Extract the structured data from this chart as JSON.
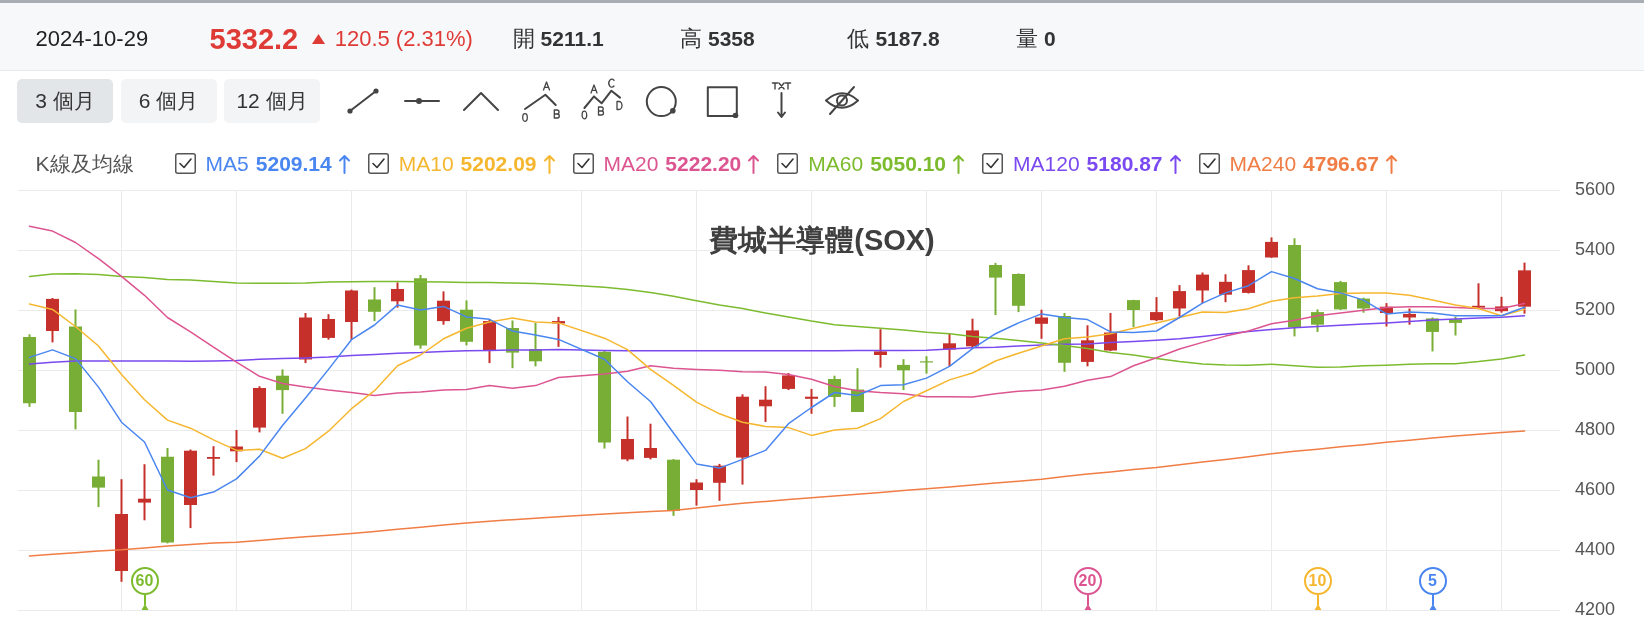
{
  "chart_data": {
    "type": "candlestick",
    "title": "費城半導體(SOX)",
    "legend_title": "K線及均線",
    "legend": "top left",
    "categories": [
      null,
      null,
      null,
      null,
      null,
      null,
      null,
      null,
      null,
      null,
      null,
      null,
      null,
      null,
      null,
      null,
      null,
      null,
      null,
      null,
      null,
      null,
      null,
      null,
      null,
      null,
      null,
      null,
      null,
      null,
      null,
      null,
      null,
      null,
      null,
      null,
      null,
      null,
      null,
      null,
      null,
      null,
      null,
      null,
      null,
      null,
      null,
      null,
      null,
      null,
      null,
      null,
      null,
      null,
      null,
      null,
      null,
      null,
      null,
      null,
      null,
      null,
      null,
      null,
      null,
      null
    ],
    "ohlc": [
      [
        5110,
        5119,
        4877,
        4889
      ],
      [
        5130,
        5240,
        5092,
        5237
      ],
      [
        5145,
        5202,
        4802,
        4860
      ],
      [
        4645,
        4701,
        4543,
        4608
      ],
      [
        4330,
        4636,
        4294,
        4520
      ],
      [
        4558,
        4686,
        4499,
        4571
      ],
      [
        4711,
        4740,
        4422,
        4425
      ],
      [
        4550,
        4735,
        4473,
        4731
      ],
      [
        4704,
        4746,
        4648,
        4710
      ],
      [
        4729,
        4800,
        4693,
        4745
      ],
      [
        4808,
        4946,
        4792,
        4940
      ],
      [
        4981,
        5002,
        4854,
        4933
      ],
      [
        5035,
        5190,
        5023,
        5175
      ],
      [
        5107,
        5186,
        5101,
        5170
      ],
      [
        5160,
        5268,
        5101,
        5265
      ],
      [
        5235,
        5276,
        5163,
        5194
      ],
      [
        5229,
        5292,
        5208,
        5270
      ],
      [
        5306,
        5317,
        5071,
        5082
      ],
      [
        5163,
        5262,
        5151,
        5231
      ],
      [
        5201,
        5232,
        5082,
        5094
      ],
      [
        5065,
        5169,
        5023,
        5163
      ],
      [
        5140,
        5165,
        5006,
        5058
      ],
      [
        5070,
        5157,
        5012,
        5029
      ],
      [
        5155,
        5177,
        5077,
        5163
      ],
      null,
      [
        5061,
        5064,
        4738,
        4758
      ],
      [
        4702,
        4845,
        4696,
        4770
      ],
      [
        4707,
        4821,
        4702,
        4740
      ],
      [
        4701,
        4703,
        4514,
        4530
      ],
      [
        4600,
        4636,
        4548,
        4625
      ],
      [
        4624,
        4687,
        4564,
        4681
      ],
      [
        4708,
        4919,
        4618,
        4911
      ],
      [
        4879,
        4946,
        4827,
        4901
      ],
      [
        4937,
        4990,
        4933,
        4982
      ],
      [
        4904,
        4937,
        4854,
        4911
      ],
      [
        4970,
        4981,
        4877,
        4910
      ],
      [
        4935,
        5006,
        4860,
        4860
      ],
      [
        5050,
        5136,
        5008,
        5062
      ],
      [
        5017,
        5036,
        4933,
        4999
      ],
      [
        5029,
        5046,
        4988,
        5025
      ],
      [
        5068,
        5121,
        5012,
        5089
      ],
      [
        5079,
        5171,
        5074,
        5132
      ],
      [
        5350,
        5357,
        5183,
        5308
      ],
      [
        5320,
        5322,
        5193,
        5214
      ],
      [
        5154,
        5201,
        5104,
        5175
      ],
      [
        5180,
        5190,
        4994,
        5024
      ],
      [
        5027,
        5149,
        5012,
        5099
      ],
      [
        5065,
        5190,
        5063,
        5125
      ],
      [
        5233,
        5234,
        5143,
        5200
      ],
      [
        5166,
        5243,
        5163,
        5193
      ],
      [
        5205,
        5283,
        5178,
        5263
      ],
      [
        5265,
        5325,
        5223,
        5318
      ],
      [
        5251,
        5319,
        5226,
        5294
      ],
      [
        5257,
        5349,
        5255,
        5333
      ],
      [
        5375,
        5442,
        5374,
        5427
      ],
      [
        5417,
        5439,
        5112,
        5142
      ],
      [
        5193,
        5202,
        5127,
        5151
      ],
      [
        5293,
        5297,
        5200,
        5202
      ],
      [
        5238,
        5241,
        5191,
        5205
      ],
      [
        5190,
        5223,
        5145,
        5211
      ],
      [
        5175,
        5205,
        5151,
        5187
      ],
      [
        5172,
        5175,
        5062,
        5127
      ],
      [
        5169,
        5178,
        5115,
        5157
      ],
      [
        5208,
        5289,
        5207,
        5214
      ],
      [
        5196,
        5244,
        5191,
        5212
      ],
      [
        5211.1,
        5358,
        5187.8,
        5332.2
      ]
    ],
    "colors": [
      "#78ae35",
      "#c5302b",
      "#78ae35",
      "#78ae35",
      "#c5302b",
      "#c5302b",
      "#78ae35",
      "#c5302b",
      "#c5302b",
      "#c5302b",
      "#c5302b",
      "#78ae35",
      "#c5302b",
      "#c5302b",
      "#c5302b",
      "#78ae35",
      "#c5302b",
      "#78ae35",
      "#c5302b",
      "#78ae35",
      "#c5302b",
      "#78ae35",
      "#78ae35",
      "#c5302b",
      null,
      "#78ae35",
      "#c5302b",
      "#c5302b",
      "#78ae35",
      "#c5302b",
      "#c5302b",
      "#c5302b",
      "#c5302b",
      "#c5302b",
      "#c5302b",
      "#78ae35",
      "#78ae35",
      "#c5302b",
      "#78ae35",
      "#78ae35",
      "#c5302b",
      "#c5302b",
      "#78ae35",
      "#78ae35",
      "#c5302b",
      "#78ae35",
      "#c5302b",
      "#c5302b",
      "#78ae35",
      "#c5302b",
      "#c5302b",
      "#c5302b",
      "#c5302b",
      "#c5302b",
      "#c5302b",
      "#78ae35",
      "#78ae35",
      "#78ae35",
      "#78ae35",
      "#c5302b",
      "#c5302b",
      "#78ae35",
      "#78ae35",
      "#c5302b",
      "#c5302b",
      "#c5302b"
    ],
    "series": [
      {
        "name": "MA5 5209.14",
        "type": "line",
        "color": "#4a86f0",
        "values": [
          5042,
          5067,
          5038,
          4943,
          4826,
          4760,
          4600,
          4574,
          4593,
          4637,
          4713,
          4815,
          4907,
          5002,
          5101,
          5150,
          5217,
          5200,
          5212,
          5177,
          5169,
          5130,
          5117,
          5102,
          null,
          5036,
          4961,
          4895,
          4790,
          4687,
          4673,
          4702,
          4732,
          4821,
          4875,
          4925,
          4915,
          4948,
          4951,
          4973,
          5012,
          5071,
          5121,
          5157,
          5187,
          5175,
          5168,
          5127,
          5125,
          5130,
          5175,
          5223,
          5257,
          5281,
          5328,
          5305,
          5271,
          5257,
          5233,
          5187,
          5193,
          5190,
          5181,
          5181,
          5181,
          5209
        ]
      },
      {
        "name": "MA10 5202.09",
        "type": "line",
        "color": "#f6b730",
        "values": [
          5220,
          5202,
          5145,
          5080,
          4985,
          4901,
          4833,
          4806,
          4767,
          4732,
          4736,
          4706,
          4738,
          4796,
          4871,
          4931,
          5014,
          5050,
          5104,
          5139,
          5160,
          5173,
          5160,
          5157,
          null,
          5106,
          5068,
          5002,
          4949,
          4893,
          4854,
          4826,
          4812,
          4808,
          4782,
          4800,
          4806,
          4838,
          4895,
          4931,
          4967,
          4990,
          5030,
          5056,
          5080,
          5104,
          5110,
          5121,
          5139,
          5157,
          5175,
          5193,
          5192,
          5204,
          5229,
          5241,
          5247,
          5255,
          5257,
          5257,
          5249,
          5233,
          5217,
          5205,
          5181,
          5202
        ]
      },
      {
        "name": "MA20 5222.20",
        "type": "line",
        "color": "#dc5591",
        "values": [
          5479,
          5463,
          5425,
          5371,
          5312,
          5249,
          5175,
          5127,
          5076,
          5026,
          4979,
          4955,
          4943,
          4933,
          4925,
          4915,
          4923,
          4927,
          4933,
          4935,
          4948,
          4939,
          4948,
          4975,
          null,
          4987,
          4996,
          5014,
          5006,
          5002,
          4999,
          4994,
          4993,
          4985,
          4969,
          4945,
          4931,
          4925,
          4921,
          4911,
          4911,
          4910,
          4921,
          4929,
          4933,
          4946,
          4966,
          4978,
          5014,
          5041,
          5070,
          5092,
          5113,
          5130,
          5154,
          5166,
          5181,
          5190,
          5199,
          5208,
          5211,
          5211,
          5208,
          5205,
          5205,
          5222
        ]
      },
      {
        "name": "MA60 5050.10",
        "type": "line",
        "color": "#7cbb2e",
        "values": [
          5312,
          5320,
          5321,
          5318,
          5312,
          5308,
          5302,
          5300,
          5295,
          5290,
          5289,
          5289,
          5290,
          5293,
          5294,
          5295,
          5295,
          5294,
          5293,
          5292,
          5292,
          5290,
          5288,
          5285,
          null,
          5276,
          5268,
          5258,
          5246,
          5231,
          5217,
          5205,
          5190,
          5177,
          5163,
          5151,
          5145,
          5139,
          5133,
          5126,
          5121,
          5112,
          5106,
          5098,
          5090,
          5082,
          5072,
          5058,
          5050,
          5038,
          5028,
          5020,
          5017,
          5016,
          5019,
          5014,
          5009,
          5010,
          5014,
          5016,
          5019,
          5021,
          5021,
          5028,
          5037,
          5050
        ]
      },
      {
        "name": "MA120 5180.87",
        "type": "line",
        "color": "#7b49f0",
        "values": [
          5020,
          5026,
          5030,
          5030,
          5030,
          5030,
          5030,
          5029,
          5030,
          5032,
          5036,
          5038,
          5040,
          5043,
          5048,
          5052,
          5056,
          5058,
          5062,
          5064,
          5065,
          5067,
          5067,
          5068,
          null,
          5065,
          5064,
          5064,
          5064,
          5064,
          5064,
          5064,
          5064,
          5064,
          5064,
          5064,
          5065,
          5065,
          5065,
          5066,
          5070,
          5074,
          5076,
          5080,
          5083,
          5086,
          5087,
          5092,
          5095,
          5099,
          5104,
          5112,
          5120,
          5128,
          5135,
          5141,
          5145,
          5149,
          5153,
          5157,
          5162,
          5167,
          5170,
          5173,
          5176,
          5181
        ]
      },
      {
        "name": "MA240 4796.67",
        "type": "line",
        "color": "#f07d45",
        "values": [
          4380,
          4386,
          4391,
          4397,
          4401,
          4407,
          4413,
          4418,
          4423,
          4426,
          4432,
          4438,
          4444,
          4449,
          4455,
          4462,
          4469,
          4476,
          4483,
          4490,
          4496,
          4501,
          4506,
          4511,
          null,
          4520,
          4524,
          4528,
          4532,
          4540,
          4548,
          4556,
          4562,
          4568,
          4574,
          4580,
          4586,
          4592,
          4598,
          4604,
          4610,
          4617,
          4623,
          4629,
          4636,
          4645,
          4653,
          4660,
          4668,
          4675,
          4684,
          4693,
          4702,
          4711,
          4721,
          4729,
          4736,
          4744,
          4751,
          4759,
          4766,
          4773,
          4780,
          4786,
          4792,
          4797
        ]
      }
    ],
    "ylim": [
      4200,
      5600
    ],
    "yticks": [
      4200,
      4400,
      4600,
      4800,
      5000,
      5200,
      5400,
      5600
    ],
    "grid": true,
    "annotations": [
      "2024-10-29",
      "5332.2",
      "120.5 (2.31%)",
      "開 5211.1",
      "高 5358",
      "低 5187.8",
      "量 0",
      "3 個月",
      "6 個月",
      "12 個月",
      "5",
      "10",
      "20",
      "60"
    ]
  }
}
